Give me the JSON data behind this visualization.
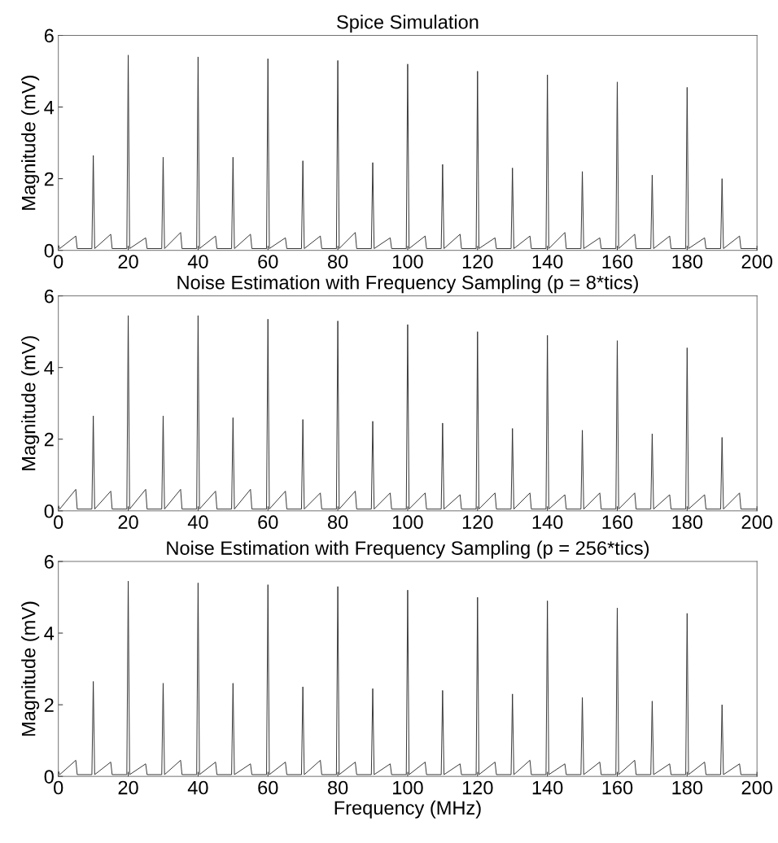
{
  "chart_data": [
    {
      "type": "line",
      "title": "Spice Simulation",
      "ylabel": "Magnitude (mV)",
      "xlim": [
        0,
        200
      ],
      "ylim": [
        0,
        6
      ],
      "xticks": [
        0,
        20,
        40,
        60,
        80,
        100,
        120,
        140,
        160,
        180,
        200
      ],
      "yticks": [
        0,
        2,
        4,
        6
      ],
      "grid": false,
      "x": [
        0,
        0.4,
        5,
        5.4,
        9.6,
        10,
        10.4,
        15,
        15.4,
        19.6,
        20,
        20.4,
        25,
        25.4,
        29.6,
        30,
        30.4,
        35,
        35.4,
        39.6,
        40,
        40.4,
        45,
        45.4,
        49.6,
        50,
        50.4,
        55,
        55.4,
        59.6,
        60,
        60.4,
        65,
        65.4,
        69.6,
        70,
        70.4,
        75,
        75.4,
        79.6,
        80,
        80.4,
        85,
        85.4,
        89.6,
        90,
        90.4,
        95,
        95.4,
        99.6,
        100,
        100.4,
        105,
        105.4,
        109.6,
        110,
        110.4,
        115,
        115.4,
        119.6,
        120,
        120.4,
        125,
        125.4,
        129.6,
        130,
        130.4,
        135,
        135.4,
        139.6,
        140,
        140.4,
        145,
        145.4,
        149.6,
        150,
        150.4,
        155,
        155.4,
        159.6,
        160,
        160.4,
        165,
        165.4,
        169.6,
        170,
        170.4,
        175,
        175.4,
        179.6,
        180,
        180.4,
        185,
        185.4,
        189.6,
        190,
        190.4,
        195,
        195.4,
        199.6,
        200
      ],
      "series": [
        {
          "color": "#333333",
          "values": [
            0.15,
            0.05,
            0.4,
            0.05,
            0.05,
            2.65,
            0.05,
            0.45,
            0.05,
            0.05,
            5.45,
            0.05,
            0.35,
            0.05,
            0.05,
            2.6,
            0.05,
            0.5,
            0.05,
            0.05,
            5.4,
            0.05,
            0.4,
            0.05,
            0.05,
            2.6,
            0.05,
            0.45,
            0.05,
            0.05,
            5.35,
            0.05,
            0.35,
            0.05,
            0.05,
            2.5,
            0.05,
            0.4,
            0.05,
            0.05,
            5.3,
            0.05,
            0.5,
            0.05,
            0.05,
            2.45,
            0.05,
            0.35,
            0.05,
            0.05,
            5.2,
            0.05,
            0.4,
            0.05,
            0.05,
            2.4,
            0.05,
            0.45,
            0.05,
            0.05,
            5.0,
            0.05,
            0.35,
            0.05,
            0.05,
            2.3,
            0.05,
            0.4,
            0.05,
            0.05,
            4.9,
            0.05,
            0.5,
            0.05,
            0.05,
            2.2,
            0.05,
            0.35,
            0.05,
            0.05,
            4.7,
            0.05,
            0.45,
            0.05,
            0.05,
            2.1,
            0.05,
            0.4,
            0.05,
            0.05,
            4.55,
            0.05,
            0.35,
            0.05,
            0.05,
            2.0,
            0.05,
            0.4,
            0.05,
            0.05,
            0.05
          ]
        }
      ]
    },
    {
      "type": "line",
      "title": "Noise Estimation with Frequency Sampling (p = 8*tics)",
      "ylabel": "Magnitude (mV)",
      "xlim": [
        0,
        200
      ],
      "ylim": [
        0,
        6
      ],
      "xticks": [
        0,
        20,
        40,
        60,
        80,
        100,
        120,
        140,
        160,
        180,
        200
      ],
      "yticks": [
        0,
        2,
        4,
        6
      ],
      "grid": false,
      "x": [
        0,
        0.4,
        5,
        5.4,
        9.6,
        10,
        10.4,
        15,
        15.4,
        19.6,
        20,
        20.4,
        25,
        25.4,
        29.6,
        30,
        30.4,
        35,
        35.4,
        39.6,
        40,
        40.4,
        45,
        45.4,
        49.6,
        50,
        50.4,
        55,
        55.4,
        59.6,
        60,
        60.4,
        65,
        65.4,
        69.6,
        70,
        70.4,
        75,
        75.4,
        79.6,
        80,
        80.4,
        85,
        85.4,
        89.6,
        90,
        90.4,
        95,
        95.4,
        99.6,
        100,
        100.4,
        105,
        105.4,
        109.6,
        110,
        110.4,
        115,
        115.4,
        119.6,
        120,
        120.4,
        125,
        125.4,
        129.6,
        130,
        130.4,
        135,
        135.4,
        139.6,
        140,
        140.4,
        145,
        145.4,
        149.6,
        150,
        150.4,
        155,
        155.4,
        159.6,
        160,
        160.4,
        165,
        165.4,
        169.6,
        170,
        170.4,
        175,
        175.4,
        179.6,
        180,
        180.4,
        185,
        185.4,
        189.6,
        190,
        190.4,
        195,
        195.4,
        199.6,
        200
      ],
      "series": [
        {
          "color": "#333333",
          "values": [
            0.15,
            0.05,
            0.6,
            0.05,
            0.05,
            2.65,
            0.05,
            0.55,
            0.05,
            0.05,
            5.45,
            0.05,
            0.6,
            0.05,
            0.05,
            2.65,
            0.05,
            0.6,
            0.05,
            0.05,
            5.45,
            0.05,
            0.55,
            0.05,
            0.05,
            2.6,
            0.05,
            0.6,
            0.05,
            0.05,
            5.35,
            0.05,
            0.55,
            0.05,
            0.05,
            2.55,
            0.05,
            0.5,
            0.05,
            0.05,
            5.3,
            0.05,
            0.55,
            0.05,
            0.05,
            2.5,
            0.05,
            0.5,
            0.05,
            0.05,
            5.2,
            0.05,
            0.5,
            0.05,
            0.05,
            2.45,
            0.05,
            0.45,
            0.05,
            0.05,
            5.0,
            0.05,
            0.5,
            0.05,
            0.05,
            2.3,
            0.05,
            0.5,
            0.05,
            0.05,
            4.9,
            0.05,
            0.45,
            0.05,
            0.05,
            2.25,
            0.05,
            0.5,
            0.05,
            0.05,
            4.75,
            0.05,
            0.5,
            0.05,
            0.05,
            2.15,
            0.05,
            0.45,
            0.05,
            0.05,
            4.55,
            0.05,
            0.45,
            0.05,
            0.05,
            2.05,
            0.05,
            0.5,
            0.05,
            0.05,
            0.05
          ]
        }
      ]
    },
    {
      "type": "line",
      "title": "Noise Estimation with Frequency Sampling (p = 256*tics)",
      "xlabel": "Frequency (MHz)",
      "ylabel": "Magnitude (mV)",
      "xlim": [
        0,
        200
      ],
      "ylim": [
        0,
        6
      ],
      "xticks": [
        0,
        20,
        40,
        60,
        80,
        100,
        120,
        140,
        160,
        180,
        200
      ],
      "yticks": [
        0,
        2,
        4,
        6
      ],
      "grid": false,
      "x": [
        0,
        0.4,
        5,
        5.4,
        9.6,
        10,
        10.4,
        15,
        15.4,
        19.6,
        20,
        20.4,
        25,
        25.4,
        29.6,
        30,
        30.4,
        35,
        35.4,
        39.6,
        40,
        40.4,
        45,
        45.4,
        49.6,
        50,
        50.4,
        55,
        55.4,
        59.6,
        60,
        60.4,
        65,
        65.4,
        69.6,
        70,
        70.4,
        75,
        75.4,
        79.6,
        80,
        80.4,
        85,
        85.4,
        89.6,
        90,
        90.4,
        95,
        95.4,
        99.6,
        100,
        100.4,
        105,
        105.4,
        109.6,
        110,
        110.4,
        115,
        115.4,
        119.6,
        120,
        120.4,
        125,
        125.4,
        129.6,
        130,
        130.4,
        135,
        135.4,
        139.6,
        140,
        140.4,
        145,
        145.4,
        149.6,
        150,
        150.4,
        155,
        155.4,
        159.6,
        160,
        160.4,
        165,
        165.4,
        169.6,
        170,
        170.4,
        175,
        175.4,
        179.6,
        180,
        180.4,
        185,
        185.4,
        189.6,
        190,
        190.4,
        195,
        195.4,
        199.6,
        200
      ],
      "series": [
        {
          "color": "#333333",
          "values": [
            0.15,
            0.05,
            0.45,
            0.05,
            0.05,
            2.65,
            0.05,
            0.4,
            0.05,
            0.05,
            5.45,
            0.05,
            0.35,
            0.05,
            0.05,
            2.6,
            0.05,
            0.45,
            0.05,
            0.05,
            5.4,
            0.05,
            0.4,
            0.05,
            0.05,
            2.6,
            0.05,
            0.35,
            0.05,
            0.05,
            5.35,
            0.05,
            0.4,
            0.05,
            0.05,
            2.5,
            0.05,
            0.45,
            0.05,
            0.05,
            5.3,
            0.05,
            0.4,
            0.05,
            0.05,
            2.45,
            0.05,
            0.35,
            0.05,
            0.05,
            5.2,
            0.05,
            0.4,
            0.05,
            0.05,
            2.4,
            0.05,
            0.35,
            0.05,
            0.05,
            5.0,
            0.05,
            0.4,
            0.05,
            0.05,
            2.3,
            0.05,
            0.45,
            0.05,
            0.05,
            4.9,
            0.05,
            0.35,
            0.05,
            0.05,
            2.2,
            0.05,
            0.4,
            0.05,
            0.05,
            4.7,
            0.05,
            0.45,
            0.05,
            0.05,
            2.1,
            0.05,
            0.35,
            0.05,
            0.05,
            4.55,
            0.05,
            0.4,
            0.05,
            0.05,
            2.0,
            0.05,
            0.35,
            0.05,
            0.05,
            0.05
          ]
        }
      ]
    }
  ]
}
